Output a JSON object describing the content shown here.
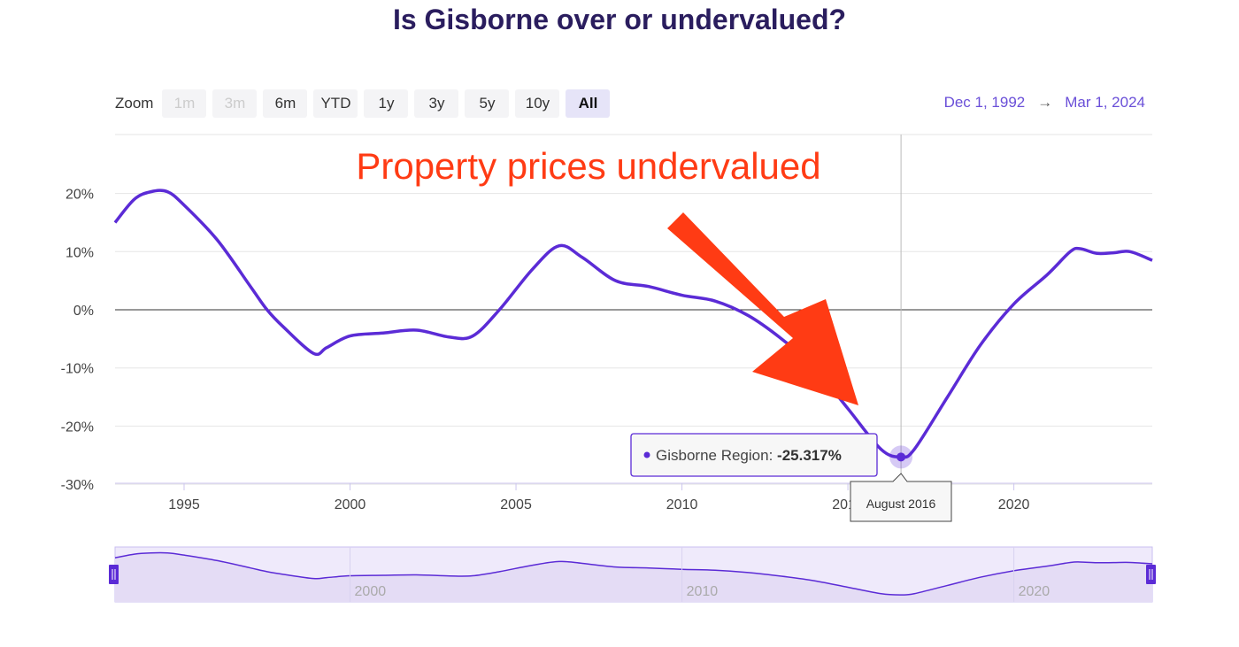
{
  "title": "Is Gisborne over or undervalued?",
  "zoom": {
    "label": "Zoom",
    "buttons": [
      {
        "label": "1m",
        "state": "disabled"
      },
      {
        "label": "3m",
        "state": "disabled"
      },
      {
        "label": "6m",
        "state": "normal"
      },
      {
        "label": "YTD",
        "state": "normal"
      },
      {
        "label": "1y",
        "state": "normal"
      },
      {
        "label": "3y",
        "state": "normal"
      },
      {
        "label": "5y",
        "state": "normal"
      },
      {
        "label": "10y",
        "state": "normal"
      },
      {
        "label": "All",
        "state": "selected"
      }
    ]
  },
  "range": {
    "from": "Dec 1, 1992",
    "arrow": "→",
    "to": "Mar 1, 2024"
  },
  "annotation": "Property prices undervalued",
  "colors": {
    "line": "#5b2bd6",
    "annotation": "#ff3b14",
    "navigator_fill": "#e4dcf5"
  },
  "tooltip": {
    "series": "Gisborne Region:",
    "value": "-25.317%",
    "date": "August 2016"
  },
  "chart_data": {
    "type": "line",
    "x_unit": "year",
    "ylim": [
      -30,
      22
    ],
    "xlim": [
      1992.92,
      2024.17
    ],
    "y_ticks": [
      "20%",
      "10%",
      "0%",
      "-10%",
      "-20%",
      "-30%"
    ],
    "y_tick_values": [
      20,
      10,
      0,
      -10,
      -20,
      -30
    ],
    "x_ticks": [
      "1995",
      "2000",
      "2005",
      "2010",
      "2015",
      "2020"
    ],
    "x_tick_values": [
      1995,
      2000,
      2005,
      2010,
      2015,
      2020
    ],
    "navigator_ticks": [
      "2000",
      "2010",
      "2020"
    ],
    "navigator_tick_values": [
      2000,
      2010,
      2020
    ],
    "grid": true,
    "highlight": {
      "x": 2016.6,
      "y": -25.317
    },
    "series": [
      {
        "name": "Gisborne Region",
        "x": [
          1992.92,
          1993.5,
          1994.0,
          1994.5,
          1995.0,
          1996.0,
          1997.0,
          1997.5,
          1998.0,
          1998.9,
          1999.3,
          2000.0,
          2001.0,
          2002.0,
          2003.0,
          2003.7,
          2004.5,
          2005.5,
          2006.3,
          2007.0,
          2008.0,
          2009.0,
          2010.0,
          2011.0,
          2012.0,
          2013.0,
          2014.0,
          2015.0,
          2016.0,
          2016.6,
          2017.0,
          2018.0,
          2019.0,
          2020.0,
          2021.0,
          2021.7,
          2022.0,
          2022.5,
          2023.0,
          2023.5,
          2024.17
        ],
        "y": [
          15,
          19,
          20.3,
          20.3,
          18,
          12,
          4,
          0,
          -3,
          -7.5,
          -6.5,
          -4.5,
          -4,
          -3.5,
          -4.7,
          -4.5,
          0,
          7,
          11,
          9,
          5,
          4,
          2.5,
          1.5,
          -1,
          -5,
          -10,
          -17,
          -24,
          -25.3,
          -24,
          -15,
          -6,
          1,
          6,
          10,
          10.5,
          9.7,
          9.8,
          10,
          8.5
        ]
      }
    ]
  }
}
